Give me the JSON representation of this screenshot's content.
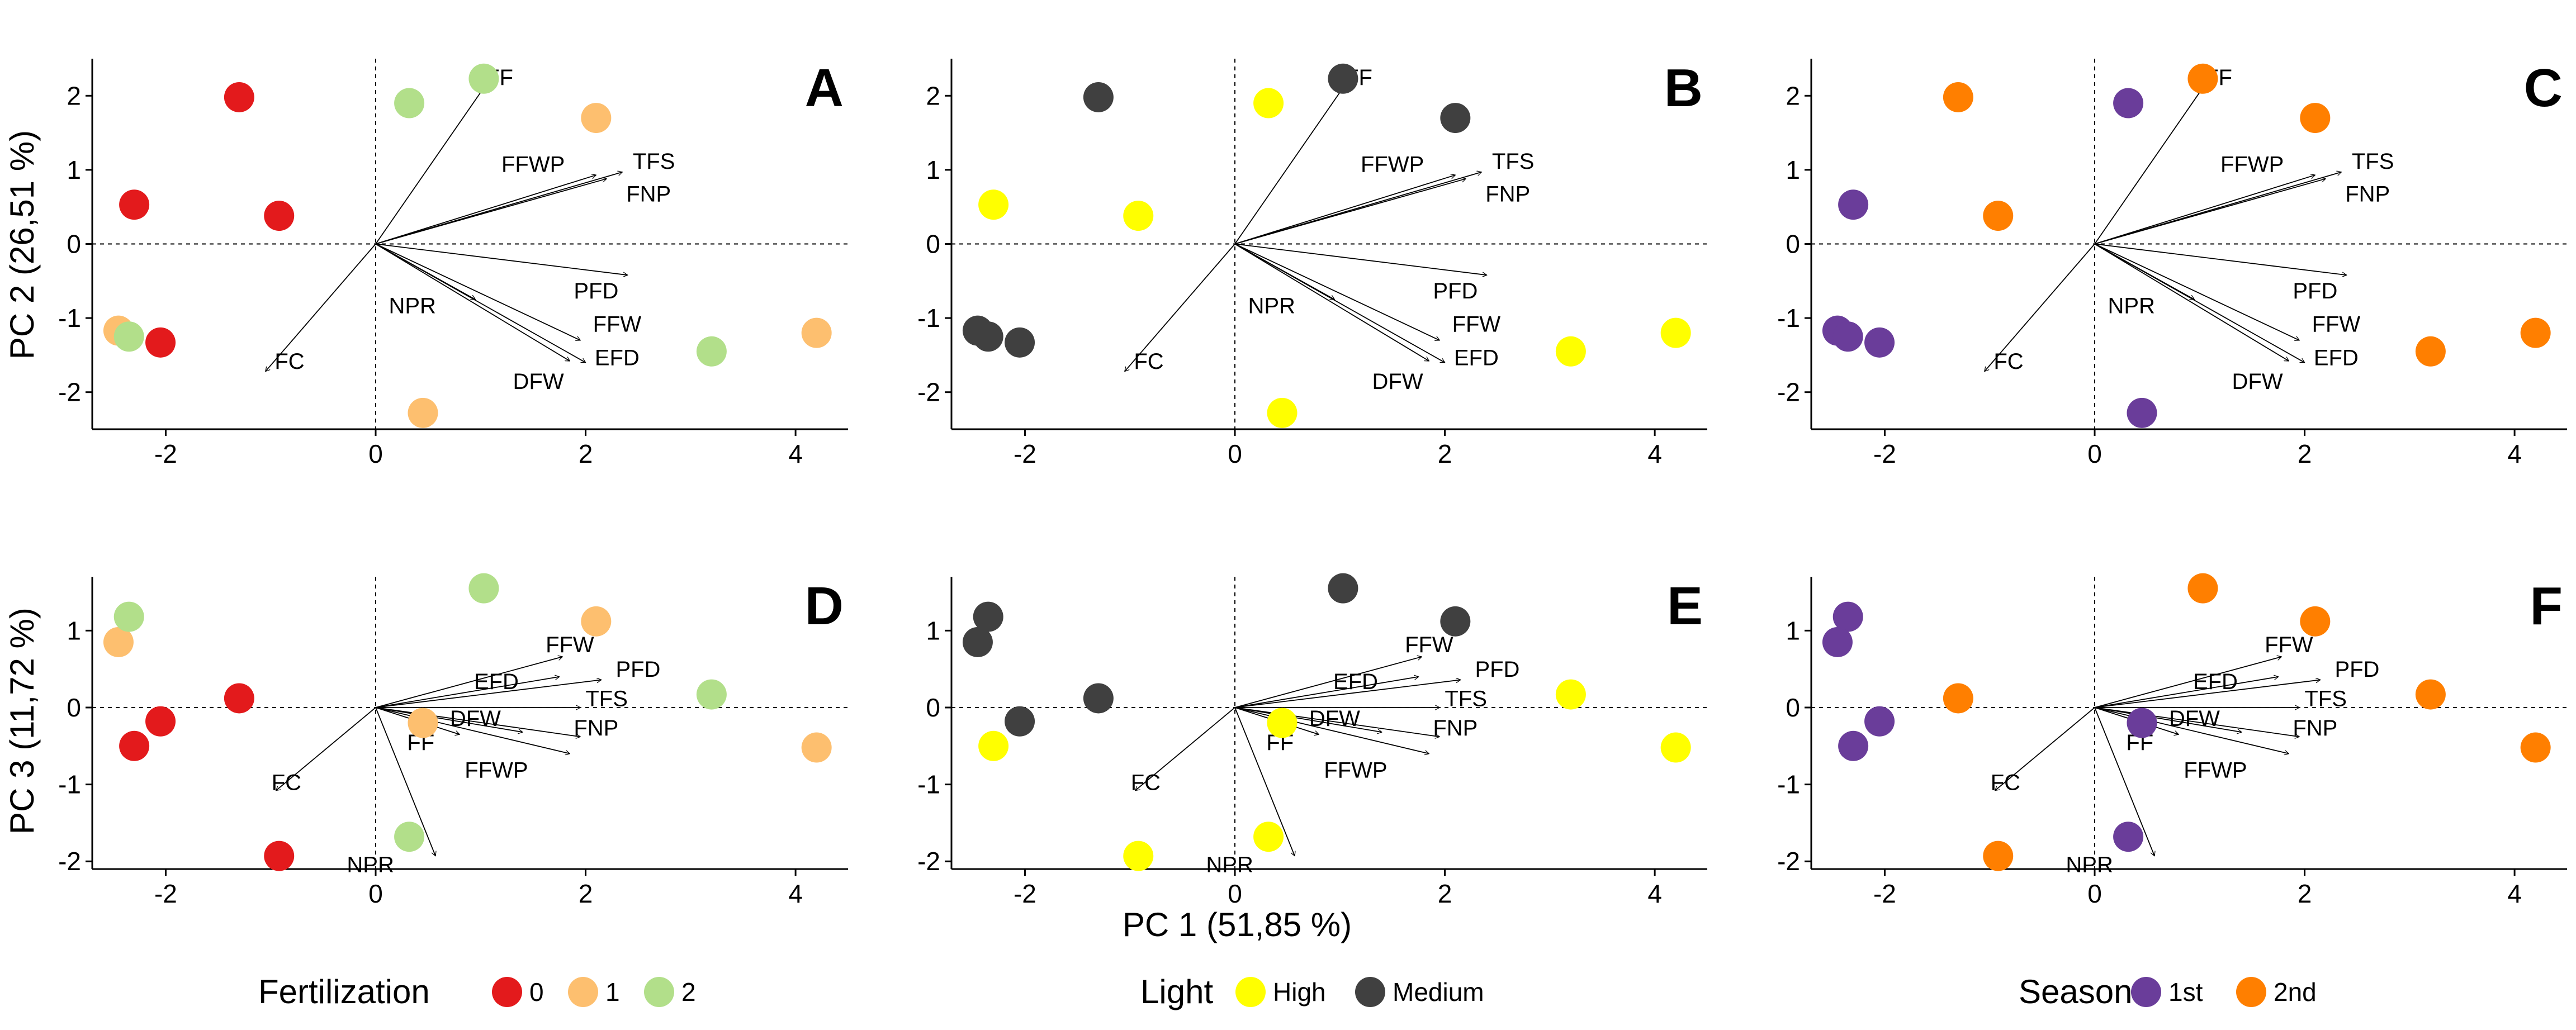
{
  "axes": {
    "x_title": "PC 1 (51,85 %)",
    "y_title_top": "PC 2 (26,51 %)",
    "y_title_bottom": "PC 3 (11,72 %)"
  },
  "legends": [
    {
      "title": "Fertilization",
      "entries": [
        {
          "label": "0",
          "color": "#e31a1c"
        },
        {
          "label": "1",
          "color": "#fdbf6f"
        },
        {
          "label": "2",
          "color": "#b2df8a"
        }
      ]
    },
    {
      "title": "Light",
      "entries": [
        {
          "label": "High",
          "color": "#ffff00"
        },
        {
          "label": "Medium",
          "color": "#404040"
        }
      ]
    },
    {
      "title": "Season",
      "entries": [
        {
          "label": "1st",
          "color": "#6a3d9a"
        },
        {
          "label": "2nd",
          "color": "#ff7f00"
        }
      ]
    }
  ],
  "chart_data": [
    {
      "type": "scatter",
      "panel": "A",
      "xlabel": "",
      "ylabel": "PC 2 (26,51 %)",
      "xlim": [
        -2.7,
        4.5
      ],
      "ylim": [
        -2.5,
        2.5
      ],
      "xticks": [
        -2,
        0,
        2,
        4
      ],
      "yticks": [
        -2,
        -1,
        0,
        1,
        2
      ],
      "points": [
        {
          "x": -1.3,
          "y": 1.98,
          "color": "#e31a1c"
        },
        {
          "x": -2.3,
          "y": 0.53,
          "color": "#e31a1c"
        },
        {
          "x": -0.92,
          "y": 0.38,
          "color": "#e31a1c"
        },
        {
          "x": -2.05,
          "y": -1.33,
          "color": "#e31a1c"
        },
        {
          "x": 2.1,
          "y": 1.7,
          "color": "#fdbf6f"
        },
        {
          "x": -2.45,
          "y": -1.17,
          "color": "#fdbf6f"
        },
        {
          "x": 0.45,
          "y": -2.28,
          "color": "#fdbf6f"
        },
        {
          "x": 4.2,
          "y": -1.2,
          "color": "#fdbf6f"
        },
        {
          "x": 1.03,
          "y": 2.23,
          "color": "#b2df8a"
        },
        {
          "x": 0.32,
          "y": 1.9,
          "color": "#b2df8a"
        },
        {
          "x": -2.35,
          "y": -1.25,
          "color": "#b2df8a"
        },
        {
          "x": 3.2,
          "y": -1.45,
          "color": "#b2df8a"
        }
      ],
      "vectors": [
        {
          "label": "FF",
          "x": 1.1,
          "y": 2.25,
          "lx": 1.18,
          "ly": 2.25
        },
        {
          "label": "FFWP",
          "x": 2.1,
          "y": 0.93,
          "lx": 1.5,
          "ly": 1.08
        },
        {
          "label": "TFS",
          "x": 2.35,
          "y": 0.97,
          "lx": 2.65,
          "ly": 1.12
        },
        {
          "label": "FNP",
          "x": 2.2,
          "y": 0.88,
          "lx": 2.6,
          "ly": 0.68
        },
        {
          "label": "PFD",
          "x": 2.4,
          "y": -0.42,
          "lx": 2.1,
          "ly": -0.63
        },
        {
          "label": "FFW",
          "x": 1.95,
          "y": -1.3,
          "lx": 2.3,
          "ly": -1.08
        },
        {
          "label": "EFD",
          "x": 2.0,
          "y": -1.6,
          "lx": 2.3,
          "ly": -1.53
        },
        {
          "label": "DFW",
          "x": 1.85,
          "y": -1.58,
          "lx": 1.55,
          "ly": -1.85
        },
        {
          "label": "NPR",
          "x": 0.95,
          "y": -0.75,
          "lx": 0.35,
          "ly": -0.83
        },
        {
          "label": "FC",
          "x": -1.05,
          "y": -1.72,
          "lx": -0.82,
          "ly": -1.58
        }
      ]
    },
    {
      "type": "scatter",
      "panel": "B",
      "xlabel": "",
      "ylabel": "",
      "xlim": [
        -2.7,
        4.5
      ],
      "ylim": [
        -2.5,
        2.5
      ],
      "xticks": [
        -2,
        0,
        2,
        4
      ],
      "yticks": [
        -2,
        -1,
        0,
        1,
        2
      ],
      "points": [
        {
          "x": -1.3,
          "y": 1.98,
          "color": "#404040"
        },
        {
          "x": 1.03,
          "y": 2.23,
          "color": "#404040"
        },
        {
          "x": 2.1,
          "y": 1.7,
          "color": "#404040"
        },
        {
          "x": -2.45,
          "y": -1.17,
          "color": "#404040"
        },
        {
          "x": -2.35,
          "y": -1.25,
          "color": "#404040"
        },
        {
          "x": -2.05,
          "y": -1.33,
          "color": "#404040"
        },
        {
          "x": 0.32,
          "y": 1.9,
          "color": "#ffff00"
        },
        {
          "x": -2.3,
          "y": 0.53,
          "color": "#ffff00"
        },
        {
          "x": -0.92,
          "y": 0.38,
          "color": "#ffff00"
        },
        {
          "x": 0.45,
          "y": -2.28,
          "color": "#ffff00"
        },
        {
          "x": 3.2,
          "y": -1.45,
          "color": "#ffff00"
        },
        {
          "x": 4.2,
          "y": -1.2,
          "color": "#ffff00"
        }
      ],
      "vectors": [
        {
          "label": "FF",
          "x": 1.1,
          "y": 2.25,
          "lx": 1.18,
          "ly": 2.25
        },
        {
          "label": "FFWP",
          "x": 2.1,
          "y": 0.93,
          "lx": 1.5,
          "ly": 1.08
        },
        {
          "label": "TFS",
          "x": 2.35,
          "y": 0.97,
          "lx": 2.65,
          "ly": 1.12
        },
        {
          "label": "FNP",
          "x": 2.2,
          "y": 0.88,
          "lx": 2.6,
          "ly": 0.68
        },
        {
          "label": "PFD",
          "x": 2.4,
          "y": -0.42,
          "lx": 2.1,
          "ly": -0.63
        },
        {
          "label": "FFW",
          "x": 1.95,
          "y": -1.3,
          "lx": 2.3,
          "ly": -1.08
        },
        {
          "label": "EFD",
          "x": 2.0,
          "y": -1.6,
          "lx": 2.3,
          "ly": -1.53
        },
        {
          "label": "DFW",
          "x": 1.85,
          "y": -1.58,
          "lx": 1.55,
          "ly": -1.85
        },
        {
          "label": "NPR",
          "x": 0.95,
          "y": -0.75,
          "lx": 0.35,
          "ly": -0.83
        },
        {
          "label": "FC",
          "x": -1.05,
          "y": -1.72,
          "lx": -0.82,
          "ly": -1.58
        }
      ]
    },
    {
      "type": "scatter",
      "panel": "C",
      "xlabel": "",
      "ylabel": "",
      "xlim": [
        -2.7,
        4.5
      ],
      "ylim": [
        -2.5,
        2.5
      ],
      "xticks": [
        -2,
        0,
        2,
        4
      ],
      "yticks": [
        -2,
        -1,
        0,
        1,
        2
      ],
      "points": [
        {
          "x": 0.32,
          "y": 1.9,
          "color": "#6a3d9a"
        },
        {
          "x": -2.3,
          "y": 0.53,
          "color": "#6a3d9a"
        },
        {
          "x": -2.45,
          "y": -1.17,
          "color": "#6a3d9a"
        },
        {
          "x": -2.35,
          "y": -1.25,
          "color": "#6a3d9a"
        },
        {
          "x": -2.05,
          "y": -1.33,
          "color": "#6a3d9a"
        },
        {
          "x": 0.45,
          "y": -2.28,
          "color": "#6a3d9a"
        },
        {
          "x": -1.3,
          "y": 1.98,
          "color": "#ff7f00"
        },
        {
          "x": 1.03,
          "y": 2.23,
          "color": "#ff7f00"
        },
        {
          "x": 2.1,
          "y": 1.7,
          "color": "#ff7f00"
        },
        {
          "x": -0.92,
          "y": 0.38,
          "color": "#ff7f00"
        },
        {
          "x": 3.2,
          "y": -1.45,
          "color": "#ff7f00"
        },
        {
          "x": 4.2,
          "y": -1.2,
          "color": "#ff7f00"
        }
      ],
      "vectors": [
        {
          "label": "FF",
          "x": 1.1,
          "y": 2.25,
          "lx": 1.18,
          "ly": 2.25
        },
        {
          "label": "FFWP",
          "x": 2.1,
          "y": 0.93,
          "lx": 1.5,
          "ly": 1.08
        },
        {
          "label": "TFS",
          "x": 2.35,
          "y": 0.97,
          "lx": 2.65,
          "ly": 1.12
        },
        {
          "label": "FNP",
          "x": 2.2,
          "y": 0.88,
          "lx": 2.6,
          "ly": 0.68
        },
        {
          "label": "PFD",
          "x": 2.4,
          "y": -0.42,
          "lx": 2.1,
          "ly": -0.63
        },
        {
          "label": "FFW",
          "x": 1.95,
          "y": -1.3,
          "lx": 2.3,
          "ly": -1.08
        },
        {
          "label": "EFD",
          "x": 2.0,
          "y": -1.6,
          "lx": 2.3,
          "ly": -1.53
        },
        {
          "label": "DFW",
          "x": 1.85,
          "y": -1.58,
          "lx": 1.55,
          "ly": -1.85
        },
        {
          "label": "NPR",
          "x": 0.95,
          "y": -0.75,
          "lx": 0.35,
          "ly": -0.83
        },
        {
          "label": "FC",
          "x": -1.05,
          "y": -1.72,
          "lx": -0.82,
          "ly": -1.58
        }
      ]
    },
    {
      "type": "scatter",
      "panel": "D",
      "xlabel": "",
      "ylabel": "PC 3 (11,72 %)",
      "xlim": [
        -2.7,
        4.5
      ],
      "ylim": [
        -2.1,
        1.7
      ],
      "xticks": [
        -2,
        0,
        2,
        4
      ],
      "yticks": [
        -2,
        -1,
        0,
        1
      ],
      "points": [
        {
          "x": -1.3,
          "y": 0.12,
          "color": "#e31a1c"
        },
        {
          "x": -2.05,
          "y": -0.18,
          "color": "#e31a1c"
        },
        {
          "x": -2.3,
          "y": -0.5,
          "color": "#e31a1c"
        },
        {
          "x": -0.92,
          "y": -1.93,
          "color": "#e31a1c"
        },
        {
          "x": 2.1,
          "y": 1.12,
          "color": "#fdbf6f"
        },
        {
          "x": -2.45,
          "y": 0.85,
          "color": "#fdbf6f"
        },
        {
          "x": 0.45,
          "y": -0.2,
          "color": "#fdbf6f"
        },
        {
          "x": 4.2,
          "y": -0.52,
          "color": "#fdbf6f"
        },
        {
          "x": 1.03,
          "y": 1.55,
          "color": "#b2df8a"
        },
        {
          "x": -2.35,
          "y": 1.18,
          "color": "#b2df8a"
        },
        {
          "x": 3.2,
          "y": 0.17,
          "color": "#b2df8a"
        },
        {
          "x": 0.32,
          "y": -1.68,
          "color": "#b2df8a"
        }
      ],
      "vectors": [
        {
          "label": "FFW",
          "x": 1.78,
          "y": 0.66,
          "lx": 1.85,
          "ly": 0.82
        },
        {
          "label": "EFD",
          "x": 1.75,
          "y": 0.4,
          "lx": 1.15,
          "ly": 0.34
        },
        {
          "label": "PFD",
          "x": 2.15,
          "y": 0.36,
          "lx": 2.5,
          "ly": 0.5
        },
        {
          "label": "TFS",
          "x": 1.95,
          "y": 0.0,
          "lx": 2.2,
          "ly": 0.12
        },
        {
          "label": "FNP",
          "x": 1.95,
          "y": -0.38,
          "lx": 2.1,
          "ly": -0.26
        },
        {
          "label": "DFW",
          "x": 1.4,
          "y": -0.32,
          "lx": 0.95,
          "ly": -0.14
        },
        {
          "label": "FFWP",
          "x": 1.85,
          "y": -0.6,
          "lx": 1.15,
          "ly": -0.81
        },
        {
          "label": "FF",
          "x": 0.8,
          "y": -0.35,
          "lx": 0.43,
          "ly": -0.45
        },
        {
          "label": "NPR",
          "x": 0.57,
          "y": -1.93,
          "lx": -0.05,
          "ly": -2.04
        },
        {
          "label": "FC",
          "x": -0.95,
          "y": -1.08,
          "lx": -0.85,
          "ly": -0.97
        }
      ]
    },
    {
      "type": "scatter",
      "panel": "E",
      "xlabel": "PC 1 (51,85 %)",
      "ylabel": "",
      "xlim": [
        -2.7,
        4.5
      ],
      "ylim": [
        -2.1,
        1.7
      ],
      "xticks": [
        -2,
        0,
        2,
        4
      ],
      "yticks": [
        -2,
        -1,
        0,
        1
      ],
      "points": [
        {
          "x": -2.35,
          "y": 1.18,
          "color": "#404040"
        },
        {
          "x": -2.45,
          "y": 0.85,
          "color": "#404040"
        },
        {
          "x": 1.03,
          "y": 1.55,
          "color": "#404040"
        },
        {
          "x": 2.1,
          "y": 1.12,
          "color": "#404040"
        },
        {
          "x": -1.3,
          "y": 0.12,
          "color": "#404040"
        },
        {
          "x": -2.05,
          "y": -0.18,
          "color": "#404040"
        },
        {
          "x": -2.3,
          "y": -0.5,
          "color": "#ffff00"
        },
        {
          "x": 0.45,
          "y": -0.2,
          "color": "#ffff00"
        },
        {
          "x": 3.2,
          "y": 0.17,
          "color": "#ffff00"
        },
        {
          "x": 4.2,
          "y": -0.52,
          "color": "#ffff00"
        },
        {
          "x": 0.32,
          "y": -1.68,
          "color": "#ffff00"
        },
        {
          "x": -0.92,
          "y": -1.93,
          "color": "#ffff00"
        }
      ],
      "vectors": [
        {
          "label": "FFW",
          "x": 1.78,
          "y": 0.66,
          "lx": 1.85,
          "ly": 0.82
        },
        {
          "label": "EFD",
          "x": 1.75,
          "y": 0.4,
          "lx": 1.15,
          "ly": 0.34
        },
        {
          "label": "PFD",
          "x": 2.15,
          "y": 0.36,
          "lx": 2.5,
          "ly": 0.5
        },
        {
          "label": "TFS",
          "x": 1.95,
          "y": 0.0,
          "lx": 2.2,
          "ly": 0.12
        },
        {
          "label": "FNP",
          "x": 1.95,
          "y": -0.38,
          "lx": 2.1,
          "ly": -0.26
        },
        {
          "label": "DFW",
          "x": 1.4,
          "y": -0.32,
          "lx": 0.95,
          "ly": -0.14
        },
        {
          "label": "FFWP",
          "x": 1.85,
          "y": -0.6,
          "lx": 1.15,
          "ly": -0.81
        },
        {
          "label": "FF",
          "x": 0.8,
          "y": -0.35,
          "lx": 0.43,
          "ly": -0.45
        },
        {
          "label": "NPR",
          "x": 0.57,
          "y": -1.93,
          "lx": -0.05,
          "ly": -2.04
        },
        {
          "label": "FC",
          "x": -0.95,
          "y": -1.08,
          "lx": -0.85,
          "ly": -0.97
        }
      ]
    },
    {
      "type": "scatter",
      "panel": "F",
      "xlabel": "",
      "ylabel": "",
      "xlim": [
        -2.7,
        4.5
      ],
      "ylim": [
        -2.1,
        1.7
      ],
      "xticks": [
        -2,
        0,
        2,
        4
      ],
      "yticks": [
        -2,
        -1,
        0,
        1
      ],
      "points": [
        {
          "x": -2.35,
          "y": 1.18,
          "color": "#6a3d9a"
        },
        {
          "x": -2.45,
          "y": 0.85,
          "color": "#6a3d9a"
        },
        {
          "x": -2.05,
          "y": -0.18,
          "color": "#6a3d9a"
        },
        {
          "x": -2.3,
          "y": -0.5,
          "color": "#6a3d9a"
        },
        {
          "x": 0.45,
          "y": -0.2,
          "color": "#6a3d9a"
        },
        {
          "x": 0.32,
          "y": -1.68,
          "color": "#6a3d9a"
        },
        {
          "x": 1.03,
          "y": 1.55,
          "color": "#ff7f00"
        },
        {
          "x": 2.1,
          "y": 1.12,
          "color": "#ff7f00"
        },
        {
          "x": -1.3,
          "y": 0.12,
          "color": "#ff7f00"
        },
        {
          "x": 3.2,
          "y": 0.17,
          "color": "#ff7f00"
        },
        {
          "x": 4.2,
          "y": -0.52,
          "color": "#ff7f00"
        },
        {
          "x": -0.92,
          "y": -1.93,
          "color": "#ff7f00"
        }
      ],
      "vectors": [
        {
          "label": "FFW",
          "x": 1.78,
          "y": 0.66,
          "lx": 1.85,
          "ly": 0.82
        },
        {
          "label": "EFD",
          "x": 1.75,
          "y": 0.4,
          "lx": 1.15,
          "ly": 0.34
        },
        {
          "label": "PFD",
          "x": 2.15,
          "y": 0.36,
          "lx": 2.5,
          "ly": 0.5
        },
        {
          "label": "TFS",
          "x": 1.95,
          "y": 0.0,
          "lx": 2.2,
          "ly": 0.12
        },
        {
          "label": "FNP",
          "x": 1.95,
          "y": -0.38,
          "lx": 2.1,
          "ly": -0.26
        },
        {
          "label": "DFW",
          "x": 1.4,
          "y": -0.32,
          "lx": 0.95,
          "ly": -0.14
        },
        {
          "label": "FFWP",
          "x": 1.85,
          "y": -0.6,
          "lx": 1.15,
          "ly": -0.81
        },
        {
          "label": "FF",
          "x": 0.8,
          "y": -0.35,
          "lx": 0.43,
          "ly": -0.45
        },
        {
          "label": "NPR",
          "x": 0.57,
          "y": -1.93,
          "lx": -0.05,
          "ly": -2.04
        },
        {
          "label": "FC",
          "x": -0.95,
          "y": -1.08,
          "lx": -0.85,
          "ly": -0.97
        }
      ]
    }
  ]
}
